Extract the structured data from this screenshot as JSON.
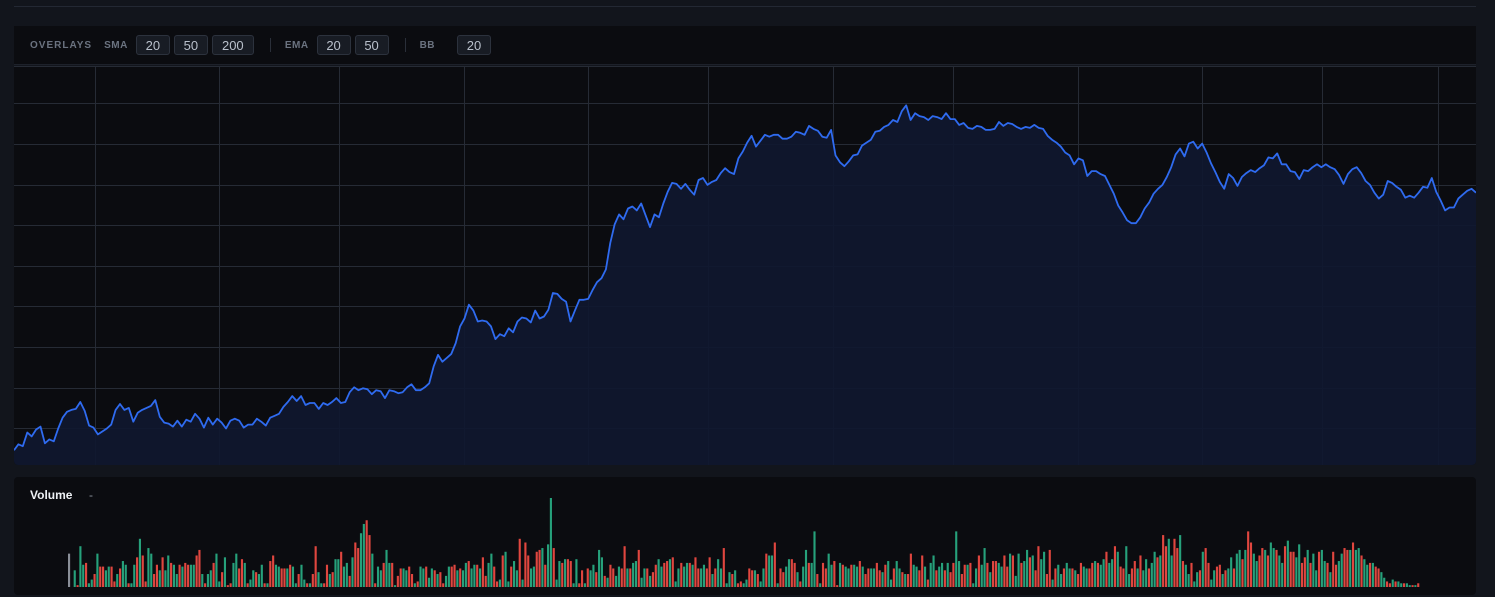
{
  "overlays": {
    "title": "OVERLAYS",
    "groups": [
      {
        "label": "SMA",
        "periods": [
          "20",
          "50",
          "200"
        ]
      },
      {
        "label": "EMA",
        "periods": [
          "20",
          "50"
        ]
      },
      {
        "label": "BB",
        "periods": [
          "20"
        ]
      }
    ]
  },
  "volume": {
    "title": "Volume",
    "value": "-"
  },
  "colors": {
    "line": "#2f6bf0",
    "area": "#0f1730",
    "up": "#26a17b",
    "down": "#e0463f",
    "neutral": "#8a8f98",
    "grid": "#262b35"
  },
  "chart_data": [
    {
      "type": "area",
      "title": "",
      "y": [
        9,
        15,
        13,
        27,
        23,
        30,
        33,
        16,
        20,
        18,
        31,
        42,
        48,
        50,
        51,
        58,
        49,
        34,
        32,
        25,
        28,
        31,
        35,
        50,
        56,
        50,
        52,
        38,
        47,
        50,
        52,
        54,
        60,
        43,
        37,
        36,
        33,
        39,
        33,
        40,
        38,
        46,
        41,
        32,
        42,
        35,
        41,
        37,
        31,
        39,
        41,
        39,
        32,
        35,
        35,
        41,
        38,
        34,
        42,
        44,
        46,
        53,
        58,
        64,
        59,
        64,
        55,
        57,
        57,
        51,
        57,
        55,
        58,
        62,
        57,
        58,
        68,
        73,
        70,
        72,
        71,
        66,
        70,
        69,
        62,
        70,
        69,
        67,
        68,
        73,
        76,
        70,
        70,
        73,
        77,
        94,
        106,
        99,
        103,
        107,
        118,
        135,
        143,
        157,
        151,
        140,
        141,
        140,
        135,
        122,
        127,
        125,
        133,
        129,
        140,
        144,
        143,
        139,
        151,
        143,
        145,
        152,
        169,
        168,
        163,
        160,
        140,
        151,
        162,
        162,
        163,
        172,
        180,
        184,
        193,
        220,
        239,
        249,
        244,
        255,
        257,
        253,
        260,
        248,
        236,
        249,
        246,
        260,
        272,
        281,
        280,
        275,
        280,
        274,
        269,
        284,
        286,
        279,
        282,
        284,
        291,
        296,
        292,
        290,
        306,
        313,
        322,
        329,
        318,
        324,
        330,
        328,
        330,
        330,
        326,
        326,
        328,
        333,
        332,
        330,
        339,
        336,
        334,
        328,
        327,
        335,
        309,
        302,
        298,
        303,
        309,
        310,
        319,
        322,
        325,
        333,
        334,
        338,
        340,
        345,
        343,
        354,
        360,
        345,
        352,
        349,
        348,
        345,
        349,
        348,
        346,
        352,
        346,
        346,
        340,
        342,
        337,
        336,
        339,
        338,
        335,
        335,
        336,
        343,
        339,
        342,
        341,
        338,
        336,
        338,
        337,
        340,
        337,
        336,
        329,
        325,
        322,
        318,
        312,
        309,
        300,
        306,
        304,
        288,
        293,
        293,
        290,
        288,
        279,
        270,
        258,
        251,
        243,
        240,
        240,
        246,
        255,
        261,
        270,
        275,
        279,
        287,
        297,
        310,
        316,
        308,
        321,
        323,
        316,
        321,
        312,
        301,
        292,
        282,
        275,
        290,
        286,
        278,
        287,
        291,
        294,
        292,
        296,
        299,
        307,
        306,
        311,
        300,
        300,
        293,
        292,
        285,
        294,
        293,
        297,
        300,
        297,
        300,
        297,
        295,
        289,
        280,
        290,
        295,
        297,
        291,
        283,
        279,
        271,
        265,
        269,
        283,
        281,
        277,
        274,
        266,
        268,
        266,
        271,
        277,
        276,
        286,
        272,
        263,
        253,
        256,
        256,
        265,
        269,
        273,
        275,
        271
      ]
    },
    {
      "type": "bar",
      "title": "Volume",
      "values": [
        18,
        0,
        9,
        1,
        22,
        12,
        13,
        2,
        4,
        7,
        18,
        11,
        11,
        9,
        11,
        11,
        3,
        7,
        10,
        14,
        12,
        2,
        2,
        12,
        16,
        26,
        17,
        3,
        21,
        18,
        7,
        12,
        9,
        16,
        9,
        17,
        13,
        12,
        7,
        12,
        11,
        13,
        12,
        12,
        12,
        17,
        20,
        7,
        2,
        7,
        9,
        13,
        18,
        3,
        8,
        16,
        1,
        2,
        13,
        18,
        10,
        15,
        13,
        2,
        4,
        9,
        8,
        7,
        12,
        2,
        2,
        14,
        17,
        12,
        11,
        10,
        10,
        10,
        12,
        11,
        2,
        7,
        12,
        4,
        2,
        2,
        7,
        22,
        8,
        2,
        2,
        12,
        7,
        8,
        15,
        15,
        19,
        11,
        13,
        6,
        16,
        24,
        21,
        29,
        34,
        36,
        28,
        18,
        2,
        11,
        9,
        13,
        20,
        13,
        13,
        1,
        6,
        10,
        10,
        9,
        11,
        7,
        2,
        3,
        11,
        10,
        11,
        5,
        10,
        9,
        7,
        8,
        2,
        6,
        11,
        11,
        12,
        9,
        10,
        9,
        13,
        14,
        10,
        12,
        12,
        10,
        16,
        6,
        13,
        18,
        11,
        3,
        4,
        17,
        19,
        3,
        11,
        14,
        9,
        26,
        4,
        24,
        17,
        10,
        11,
        19,
        20,
        21,
        12,
        23,
        48,
        21,
        4,
        14,
        13,
        15,
        15,
        14,
        2,
        15,
        2,
        9,
        2,
        10,
        9,
        12,
        8,
        20,
        16,
        6,
        5,
        12,
        10,
        6,
        11,
        10,
        22,
        10,
        10,
        13,
        14,
        20,
        5,
        10,
        10,
        6,
        8,
        12,
        15,
        11,
        13,
        14,
        15,
        16,
        3,
        10,
        13,
        11,
        13,
        13,
        12,
        16,
        10,
        10,
        12,
        10,
        16,
        7,
        10,
        15,
        10,
        21,
        2,
        8,
        7,
        9,
        2,
        3,
        2,
        4,
        10,
        9,
        9,
        7,
        3,
        10,
        18,
        17,
        17,
        24,
        2,
        10,
        8,
        11,
        15,
        15,
        13,
        8,
        3,
        11,
        20,
        13,
        13,
        30,
        7,
        2,
        13,
        10,
        18,
        12,
        14,
        1,
        13,
        12,
        11,
        10,
        12,
        12,
        11,
        14,
        11,
        7,
        10,
        10,
        10,
        13,
        9,
        8,
        12,
        14,
        4,
        10,
        14,
        10,
        8,
        7,
        7,
        18,
        12,
        11,
        9,
        17,
        11,
        4,
        13,
        17,
        9,
        11,
        13,
        9,
        13,
        8,
        13,
        30,
        14,
        7,
        12,
        12,
        13,
        2,
        10,
        17,
        12,
        21,
        13,
        8,
        14,
        14,
        13,
        11,
        17,
        11,
        18,
        17,
        6,
        18,
        13,
        14,
        20,
        16,
        17,
        9,
        22,
        15,
        19,
        7,
        20,
        4,
        10,
        12,
        7,
        10,
        13,
        10,
        10,
        9,
        7,
        13,
        11,
        10,
        10,
        13,
        14,
        13,
        12,
        15,
        19,
        13,
        15,
        22,
        19,
        11,
        10,
        22,
        7,
        10,
        14,
        10,
        17,
        9,
        15,
        10,
        13,
        19,
        16,
        17,
        28,
        22,
        26,
        17,
        26,
        21,
        28,
        14,
        12,
        7,
        13,
        3,
        8,
        9,
        19,
        21,
        13,
        4,
        9,
        11,
        12,
        7,
        9,
        10,
        16,
        10,
        18,
        20,
        15,
        20,
        30,
        24,
        18,
        14,
        17,
        21,
        20,
        17,
        24,
        21,
        20,
        17,
        13,
        22,
        25,
        19,
        19,
        16,
        23,
        13,
        16,
        20,
        13,
        18,
        9,
        19,
        20,
        14,
        13,
        8,
        19,
        12,
        14,
        18,
        21,
        20,
        20,
        24,
        20,
        21,
        17,
        15,
        12,
        13,
        13,
        11,
        10,
        8,
        5,
        3,
        2,
        4,
        3,
        3,
        2,
        2,
        2,
        1,
        1,
        1,
        2
      ]
    }
  ]
}
